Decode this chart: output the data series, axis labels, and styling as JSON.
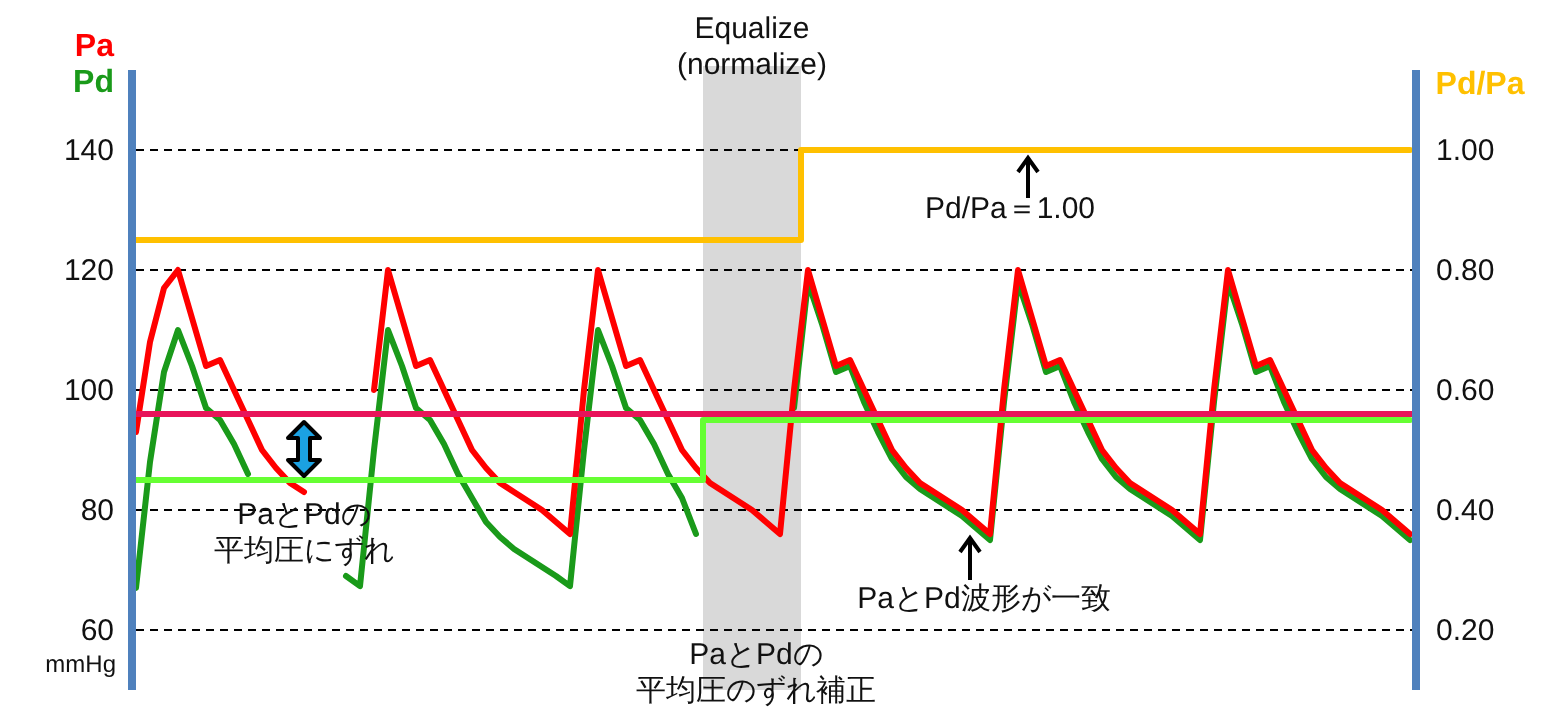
{
  "chart_data": {
    "type": "line",
    "categories": [
      null,
      null,
      null,
      null,
      null,
      null,
      null,
      null,
      null,
      null,
      null,
      null,
      null,
      null,
      null,
      null,
      null,
      null,
      null,
      null,
      null,
      null,
      null,
      null,
      null,
      null,
      null,
      null,
      null,
      null,
      null,
      null,
      null,
      null,
      null,
      null,
      null,
      null,
      null,
      null,
      null,
      null,
      null,
      null,
      null,
      null,
      null,
      null,
      null,
      null,
      null,
      null,
      null,
      null,
      null,
      null,
      null,
      null,
      null,
      null,
      null,
      null,
      null,
      null,
      null,
      null,
      null,
      null,
      null,
      null,
      null,
      null,
      null,
      null,
      null,
      null,
      null,
      null,
      null,
      null,
      null,
      null,
      null,
      null,
      null,
      null,
      null,
      null,
      null,
      null,
      null,
      null
    ],
    "series": [
      {
        "name": "Pd",
        "color": "#1a9a1a",
        "values": [
          67,
          88,
          103,
          110,
          104,
          97,
          95,
          91,
          86,
          null,
          null,
          null,
          null,
          null,
          null,
          69,
          67.3,
          90,
          110,
          104,
          97,
          95,
          91,
          86,
          82,
          78,
          75.5,
          73.5,
          72,
          70.5,
          69,
          67.3,
          90,
          110,
          104,
          97,
          95,
          91,
          86,
          82,
          76,
          null,
          null,
          null,
          null,
          null,
          null,
          97,
          118,
          111,
          103,
          104,
          98,
          93,
          88.5,
          85.5,
          83.5,
          82,
          80.5,
          79,
          77,
          75,
          98,
          118,
          111,
          103,
          104,
          98,
          93,
          88.5,
          85.5,
          83.5,
          82,
          80.5,
          79,
          77,
          75,
          98,
          118,
          111,
          103,
          104,
          98,
          93,
          88.5,
          85.5,
          83.5,
          82,
          80.5,
          79,
          77,
          75
        ]
      },
      {
        "name": "Pa",
        "color": "#ff0000",
        "values": [
          93,
          108,
          117,
          120,
          112,
          104,
          105,
          100,
          95,
          90,
          87,
          84.5,
          83,
          null,
          null,
          null,
          null,
          100,
          120,
          112,
          104,
          105,
          100,
          95,
          90,
          87,
          84.5,
          83,
          81.5,
          80,
          78,
          76,
          100,
          120,
          112,
          104,
          105,
          100,
          95,
          90,
          87,
          84.5,
          83,
          81.5,
          80,
          78,
          76,
          100,
          120,
          112,
          104,
          105,
          100,
          95,
          90,
          87,
          84.5,
          83,
          81.5,
          80,
          78,
          76,
          100,
          120,
          112,
          104,
          105,
          100,
          95,
          90,
          87,
          84.5,
          83,
          81.5,
          80,
          78,
          76,
          100,
          120,
          112,
          104,
          105,
          100,
          95,
          90,
          87,
          84.5,
          83,
          81.5,
          80,
          78,
          76
        ]
      },
      {
        "type": "step",
        "color": "#66ff33",
        "values": [
          85,
          85,
          85,
          85,
          85,
          85,
          85,
          85,
          85,
          85,
          85,
          85,
          85,
          85,
          85,
          85,
          85,
          85,
          85,
          85,
          85,
          85,
          85,
          85,
          85,
          85,
          85,
          85,
          85,
          85,
          85,
          85,
          85,
          85,
          85,
          85,
          85,
          85,
          85,
          85,
          85,
          95,
          95,
          95,
          95,
          95,
          95,
          95,
          95,
          95,
          95,
          95,
          95,
          95,
          95,
          95,
          95,
          95,
          95,
          95,
          95,
          95,
          95,
          95,
          95,
          95,
          95,
          95,
          95,
          95,
          95,
          95,
          95,
          95,
          95,
          95,
          95,
          95,
          95,
          95,
          95,
          95,
          95,
          95,
          95,
          95,
          95,
          95,
          95,
          95,
          95,
          95
        ]
      },
      {
        "type": "step",
        "axis": "y2",
        "name": "Pd/Pa",
        "color": "#ffc000",
        "values": [
          0.85,
          0.85,
          0.85,
          0.85,
          0.85,
          0.85,
          0.85,
          0.85,
          0.85,
          0.85,
          0.85,
          0.85,
          0.85,
          0.85,
          0.85,
          0.85,
          0.85,
          0.85,
          0.85,
          0.85,
          0.85,
          0.85,
          0.85,
          0.85,
          0.85,
          0.85,
          0.85,
          0.85,
          0.85,
          0.85,
          0.85,
          0.85,
          0.85,
          0.85,
          0.85,
          0.85,
          0.85,
          0.85,
          0.85,
          0.85,
          0.85,
          0.85,
          0.85,
          0.85,
          0.85,
          0.85,
          0.85,
          0.85,
          1,
          1,
          1,
          1,
          1,
          1,
          1,
          1,
          1,
          1,
          1,
          1,
          1,
          1,
          1,
          1,
          1,
          1,
          1,
          1,
          1,
          1,
          1,
          1,
          1,
          1,
          1,
          1,
          1,
          1,
          1,
          1,
          1,
          1,
          1,
          1,
          1,
          1,
          1,
          1,
          1,
          1,
          1,
          1
        ]
      }
    ],
    "ylim": [
      60,
      140
    ],
    "yticks": [
      60,
      80,
      100,
      120,
      140
    ],
    "y2lim": [
      0.2,
      1
    ],
    "y2ticks": [
      {
        "value": 0.2,
        "label": "0.20"
      },
      {
        "value": 0.4,
        "label": "0.40"
      },
      {
        "value": 0.6,
        "label": "0.60"
      },
      {
        "value": 0.8,
        "label": "0.80"
      },
      {
        "value": 1,
        "label": "1.00"
      }
    ],
    "ylabel": "mmHg",
    "grid": "y",
    "legend": "top left",
    "ref_lines": [
      {
        "axis": "y",
        "value": 96,
        "color": "#e8145a"
      }
    ],
    "annotations": [
      "Equalize\n(normalize)",
      "Pd/Pa＝1.00",
      "PaとPdの",
      "平均圧にずれ",
      "PaとPd波形が一致",
      "PaとPdの",
      "平均圧のずれ補正"
    ]
  }
}
